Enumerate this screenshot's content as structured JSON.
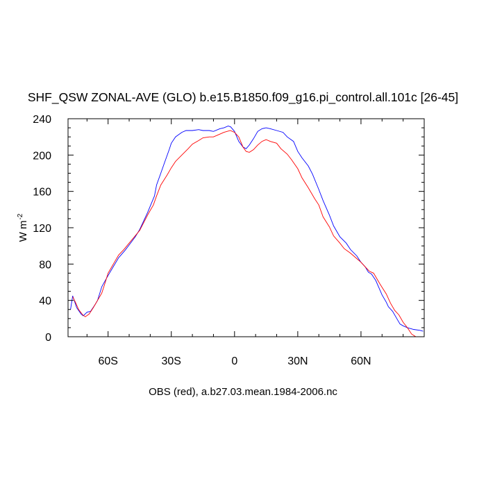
{
  "chart_data": {
    "type": "line",
    "title": "SHF_QSW ZONAL-AVE (GLO) b.e15.B1850.f09_g16.pi_control.all.101c [26-45]",
    "xlabel": "OBS (red), a.b27.03.mean.1984-2006.nc",
    "ylabel": "W m",
    "ylabel_sup": "-2",
    "xlim": [
      -79,
      90
    ],
    "ylim": [
      0,
      240
    ],
    "xticks": [
      {
        "value": -60,
        "label": "60S"
      },
      {
        "value": -30,
        "label": "30S"
      },
      {
        "value": 0,
        "label": "0"
      },
      {
        "value": 30,
        "label": "30N"
      },
      {
        "value": 60,
        "label": "60N"
      }
    ],
    "yticks": [
      0,
      40,
      80,
      120,
      160,
      200,
      240
    ],
    "grid": false,
    "series": [
      {
        "color": "#0000ff",
        "x": [
          -77.8,
          -76.8,
          -74.9,
          -72.8,
          -71.8,
          -70.0,
          -68.3,
          -66.3,
          -65.0,
          -63.0,
          -60.1,
          -57.3,
          -55.0,
          -52.0,
          -50.0,
          -47.1,
          -45.0,
          -43.0,
          -41.2,
          -38.0,
          -37.0,
          -35.0,
          -33.0,
          -31.0,
          -30.0,
          -28.0,
          -25.0,
          -23.0,
          -20.0,
          -17.0,
          -15.0,
          -12.0,
          -10.0,
          -7.0,
          -5.0,
          -3.0,
          -1.8,
          0.0,
          2.0,
          4.0,
          5.5,
          7.0,
          9.0,
          11.0,
          13.0,
          15.0,
          17.0,
          20.0,
          23.0,
          25.0,
          28.0,
          30.0,
          32.0,
          35.0,
          37.0,
          40.0,
          42.0,
          45.0,
          47.0,
          50.0,
          53.0,
          55.0,
          58.0,
          60.0,
          62.0,
          63.5,
          65.0,
          67.0,
          70.0,
          72.0,
          73.0,
          75.0,
          77.0,
          78.5,
          80.0,
          82.0,
          85.0,
          88.0,
          89.5
        ],
        "y": [
          30,
          45,
          32,
          25,
          23,
          27,
          28,
          35,
          40,
          55,
          67,
          78,
          87,
          95,
          101,
          110,
          118,
          128,
          137,
          155,
          167,
          180,
          193,
          206,
          213,
          220,
          225,
          227,
          227,
          228,
          227,
          227,
          226,
          229,
          230,
          232,
          231,
          226,
          215,
          209,
          207,
          211,
          218,
          226,
          229,
          230,
          229,
          227,
          225,
          220,
          215,
          204,
          197,
          188,
          179,
          162,
          150,
          134,
          122,
          110,
          103,
          96,
          89,
          82,
          77,
          71,
          69,
          62,
          46,
          38,
          33,
          28,
          20,
          14,
          12,
          10,
          8,
          7,
          6
        ]
      },
      {
        "color": "#ff0000",
        "x": [
          -76.8,
          -75.5,
          -74.0,
          -72.0,
          -70.8,
          -69.0,
          -67.0,
          -65.0,
          -63.0,
          -62.0,
          -60.0,
          -57.0,
          -55.0,
          -52.5,
          -50.0,
          -47.5,
          -45.0,
          -43.0,
          -41.0,
          -38.5,
          -37.0,
          -35.0,
          -32.0,
          -30.0,
          -28.0,
          -25.0,
          -22.0,
          -20.0,
          -17.0,
          -15.0,
          -12.0,
          -10.0,
          -8.0,
          -5.0,
          -2.0,
          0.0,
          2.0,
          4.0,
          5.5,
          7.0,
          9.0,
          11.0,
          13.0,
          15.0,
          17.0,
          20.0,
          22.0,
          25.0,
          27.0,
          30.0,
          32.0,
          35.0,
          38.0,
          40.0,
          42.0,
          45.0,
          47.0,
          50.0,
          52.0,
          55.0,
          58.0,
          60.0,
          62.0,
          64.0,
          66.0,
          69.0,
          72.0,
          74.0,
          76.0,
          78.0,
          80.0,
          82.0,
          84.0,
          86.0,
          89.0
        ],
        "y": [
          44,
          38,
          30,
          24,
          22,
          25,
          32,
          40,
          48,
          55,
          70,
          82,
          90,
          96,
          103,
          110,
          117,
          126,
          135,
          145,
          155,
          167,
          178,
          186,
          193,
          200,
          207,
          212,
          216,
          219,
          220,
          220,
          222,
          225,
          227,
          225,
          220,
          209,
          204,
          203,
          206,
          211,
          215,
          217,
          215,
          213,
          207,
          201,
          195,
          185,
          175,
          164,
          152,
          145,
          132,
          121,
          111,
          103,
          97,
          92,
          86,
          82,
          77,
          72,
          70,
          58,
          47,
          37,
          29,
          24,
          16,
          10,
          3,
          0,
          0
        ]
      }
    ]
  }
}
